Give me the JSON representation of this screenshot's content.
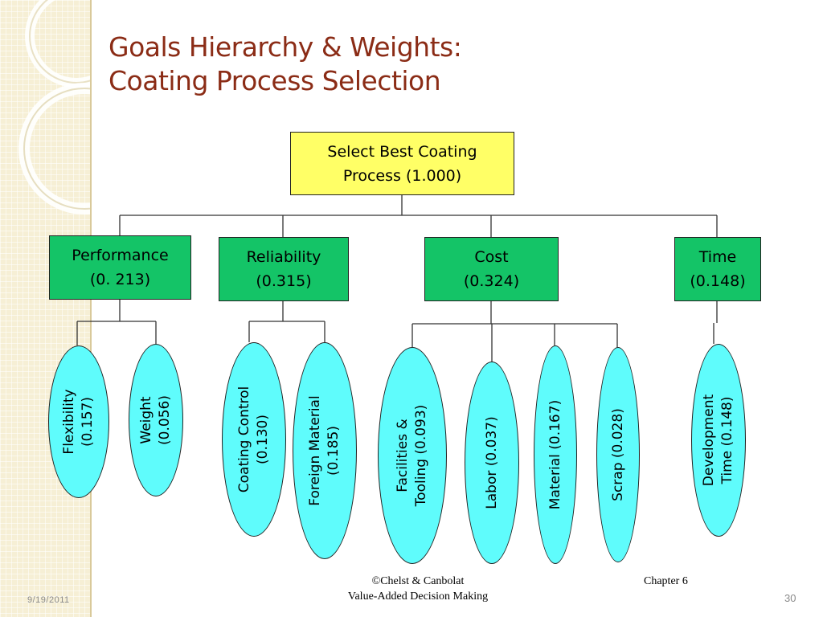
{
  "title": {
    "line1": "Goals Hierarchy & Weights:",
    "line2": "Coating Process Selection"
  },
  "root": {
    "line1": "Select Best Coating",
    "line2": "Process (1.000)"
  },
  "criteria": [
    {
      "name": "Performance",
      "weight": "(0. 213)"
    },
    {
      "name": "Reliability",
      "weight": "(0.315)"
    },
    {
      "name": "Cost",
      "weight": "(0.324)"
    },
    {
      "name": "Time",
      "weight": "(0.148)"
    }
  ],
  "subcriteria": [
    {
      "line1": "Flexibility",
      "line2": "(0.157)"
    },
    {
      "line1": "Weight",
      "line2": "(0.056)"
    },
    {
      "line1": "Coating Control",
      "line2": "(0.130)"
    },
    {
      "line1": "Foreign Material",
      "line2": "(0.185)"
    },
    {
      "line1": "Facilities &",
      "line2": "Tooling (0.093)"
    },
    {
      "line1": "Labor (0.037)",
      "line2": ""
    },
    {
      "line1": "Material (0.167)",
      "line2": ""
    },
    {
      "line1": "Scrap (0.028)",
      "line2": ""
    },
    {
      "line1": "Development",
      "line2": "Time (0.148)"
    }
  ],
  "footer": {
    "copyright": "©Chelst & Canbolat",
    "book": "Value-Added Decision Making",
    "chapter": "Chapter 6",
    "date": "9/19/2011",
    "page": "30"
  },
  "colors": {
    "title": "#8b2c16",
    "root_fill": "#ffff66",
    "criteria_fill": "#14c467",
    "leaf_fill": "#5ffcfc",
    "sidebar": "#f6efd5"
  }
}
